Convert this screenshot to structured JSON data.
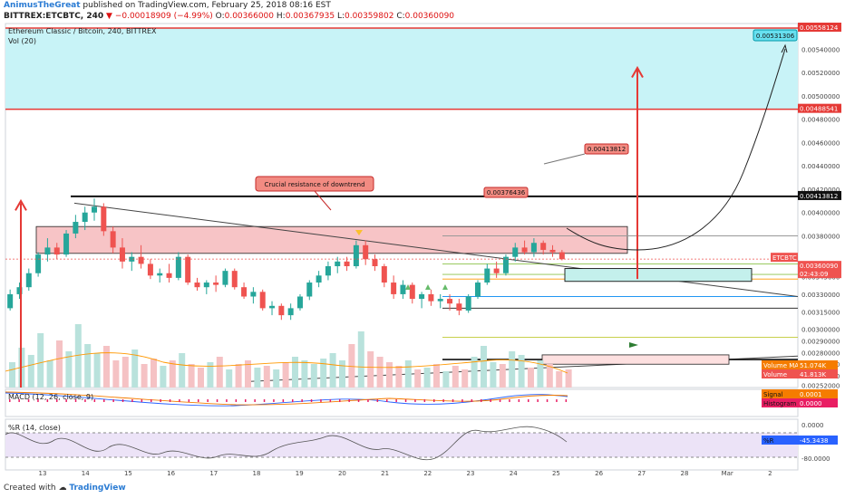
{
  "header": {
    "author": "AnimusTheGreat",
    "published": " published on TradingView.com, February 25, 2018 08:16 EST",
    "symbol": "BITTREX:ETCBTC, 240",
    "change": "▼ −0.00018909 (−4.99%)",
    "o_label": "O:",
    "o": "0.00366000",
    "h_label": "H:",
    "h": "0.00367935",
    "l_label": "L:",
    "l": "0.00359802",
    "c_label": "C:",
    "c": "0.00360090"
  },
  "pane_titles": {
    "main": "Ethereum Classic / Bitcoin, 240, BITTREX",
    "vol": "Vol (20)",
    "macd": "MACD (12, 26, close, 9)",
    "wr": "%R (14, close)"
  },
  "annotations": {
    "crucial": "Crucial resistance of downtrend",
    "target_box": "0.00531306",
    "resistance_box": "0.00413812",
    "local_high_box": "0.00376436"
  },
  "price_labels": [
    {
      "text": "0.00558124",
      "bg": "#e53935",
      "fg": "#ffffff"
    },
    {
      "text": "0.00488541",
      "bg": "#e53935",
      "fg": "#ffffff"
    },
    {
      "text": "0.00413812",
      "bg": "#111111",
      "fg": "#ffffff"
    },
    {
      "text": "ETCBTC",
      "bg": "#ef5350",
      "fg": "#ffffff"
    },
    {
      "text": "0.00360090",
      "bg": "#ef5350",
      "fg": "#ffffff"
    },
    {
      "text": "02:43:09",
      "bg": "#ef5350",
      "fg": "#ffffff"
    }
  ],
  "indicator_labels": [
    {
      "name": "Volume MA",
      "value": "51.074K",
      "color": "#f57c00"
    },
    {
      "name": "Volume",
      "value": "41.813K",
      "color": "#ef5350"
    },
    {
      "name": "Signal",
      "value": "0.0001",
      "color": "#f57c00"
    },
    {
      "name": "Histogram",
      "value": "0.0000",
      "color": "#e91e63"
    },
    {
      "name": "%R",
      "value": "-45.3438",
      "color": "#2962ff"
    }
  ],
  "footer": {
    "created_with": "Created with",
    "brand": "TradingView"
  },
  "colors": {
    "up": "#26a69a",
    "down": "#ef5350",
    "cyan_zone": "#c8f3f7",
    "pink_zone": "#f7c4c6",
    "teal_zone": "#c4f0ec"
  },
  "chart_data": {
    "type": "candlestick",
    "title": "Ethereum Classic / Bitcoin, 240, BITTREX",
    "ylim": [
      0.0025,
      0.00562
    ],
    "y_ticks": [
      "0.00540000",
      "0.00520000",
      "0.00500000",
      "0.00480000",
      "0.00460000",
      "0.00440000",
      "0.00420000",
      "0.00400000",
      "0.00380000",
      "0.00345000",
      "0.00330000",
      "0.00315000",
      "0.00300000",
      "0.00290000",
      "0.00280000",
      "0.00270000",
      "0.00260000",
      "0.00252000"
    ],
    "x_ticks": [
      "13",
      "14",
      "15",
      "16",
      "17",
      "18",
      "19",
      "20",
      "21",
      "22",
      "23",
      "24",
      "25",
      "26",
      "27",
      "28",
      "Mar",
      "2"
    ],
    "candles": [
      [
        0.00318,
        0.00334,
        0.00316,
        0.0033
      ],
      [
        0.0033,
        0.0034,
        0.00326,
        0.00336
      ],
      [
        0.00336,
        0.00352,
        0.00333,
        0.00348
      ],
      [
        0.00348,
        0.00366,
        0.00345,
        0.00364
      ],
      [
        0.00364,
        0.00378,
        0.00358,
        0.0037
      ],
      [
        0.0037,
        0.00374,
        0.0036,
        0.00364
      ],
      [
        0.00364,
        0.00385,
        0.00362,
        0.00382
      ],
      [
        0.00382,
        0.00398,
        0.00378,
        0.00392
      ],
      [
        0.00392,
        0.00405,
        0.00385,
        0.004
      ],
      [
        0.004,
        0.00412,
        0.00393,
        0.00405
      ],
      [
        0.00405,
        0.00408,
        0.0038,
        0.00384
      ],
      [
        0.00384,
        0.00388,
        0.00365,
        0.0037
      ],
      [
        0.0037,
        0.00378,
        0.00352,
        0.00358
      ],
      [
        0.00358,
        0.00366,
        0.0035,
        0.00362
      ],
      [
        0.00362,
        0.00372,
        0.00352,
        0.00356
      ],
      [
        0.00356,
        0.0036,
        0.00343,
        0.00346
      ],
      [
        0.00346,
        0.00352,
        0.0034,
        0.00348
      ],
      [
        0.00348,
        0.00356,
        0.0034,
        0.00344
      ],
      [
        0.00344,
        0.00366,
        0.00342,
        0.00362
      ],
      [
        0.00362,
        0.00364,
        0.00338,
        0.0034
      ],
      [
        0.0034,
        0.00344,
        0.00333,
        0.00336
      ],
      [
        0.00336,
        0.00342,
        0.0033,
        0.0034
      ],
      [
        0.0034,
        0.00346,
        0.00332,
        0.00338
      ],
      [
        0.00338,
        0.00352,
        0.00336,
        0.0035
      ],
      [
        0.0035,
        0.00352,
        0.00334,
        0.00336
      ],
      [
        0.00336,
        0.0034,
        0.00326,
        0.00328
      ],
      [
        0.00328,
        0.00336,
        0.00322,
        0.00332
      ],
      [
        0.00332,
        0.00334,
        0.00316,
        0.00318
      ],
      [
        0.00318,
        0.00324,
        0.00312,
        0.0032
      ],
      [
        0.0032,
        0.00322,
        0.00308,
        0.00312
      ],
      [
        0.00312,
        0.00322,
        0.00308,
        0.00318
      ],
      [
        0.00318,
        0.0033,
        0.00316,
        0.00328
      ],
      [
        0.00328,
        0.00342,
        0.00325,
        0.0034
      ],
      [
        0.0034,
        0.0035,
        0.00336,
        0.00346
      ],
      [
        0.00346,
        0.00358,
        0.00342,
        0.00354
      ],
      [
        0.00354,
        0.00362,
        0.00348,
        0.00358
      ],
      [
        0.00358,
        0.00362,
        0.0035,
        0.00354
      ],
      [
        0.00354,
        0.00376,
        0.00352,
        0.00372
      ],
      [
        0.00372,
        0.00376,
        0.00355,
        0.0036
      ],
      [
        0.0036,
        0.00364,
        0.0035,
        0.00354
      ],
      [
        0.00354,
        0.00356,
        0.00336,
        0.0034
      ],
      [
        0.0034,
        0.00346,
        0.00326,
        0.0033
      ],
      [
        0.0033,
        0.00342,
        0.00326,
        0.00338
      ],
      [
        0.00338,
        0.0034,
        0.00322,
        0.00326
      ],
      [
        0.00326,
        0.00332,
        0.00318,
        0.0033
      ],
      [
        0.0033,
        0.00334,
        0.0032,
        0.00324
      ],
      [
        0.00324,
        0.0033,
        0.00318,
        0.00326
      ],
      [
        0.00326,
        0.0033,
        0.00316,
        0.00322
      ],
      [
        0.00322,
        0.00326,
        0.00312,
        0.00316
      ],
      [
        0.00316,
        0.0033,
        0.00314,
        0.00328
      ],
      [
        0.00328,
        0.00342,
        0.00326,
        0.0034
      ],
      [
        0.0034,
        0.00356,
        0.00338,
        0.00352
      ],
      [
        0.00352,
        0.00358,
        0.00344,
        0.00348
      ],
      [
        0.00348,
        0.00364,
        0.00346,
        0.00362
      ],
      [
        0.00362,
        0.00374,
        0.00358,
        0.0037
      ],
      [
        0.0037,
        0.00376,
        0.00364,
        0.00366
      ],
      [
        0.00366,
        0.00378,
        0.00362,
        0.00374
      ],
      [
        0.00374,
        0.00376,
        0.00364,
        0.00368
      ],
      [
        0.00368,
        0.00372,
        0.00362,
        0.00366
      ],
      [
        0.00366,
        0.00368,
        0.00359,
        0.0036
      ]
    ],
    "levels": [
      0.00558124,
      0.00488541,
      0.00413812,
      0.00376436,
      0.0036009
    ],
    "projection_target": 0.00531306
  }
}
